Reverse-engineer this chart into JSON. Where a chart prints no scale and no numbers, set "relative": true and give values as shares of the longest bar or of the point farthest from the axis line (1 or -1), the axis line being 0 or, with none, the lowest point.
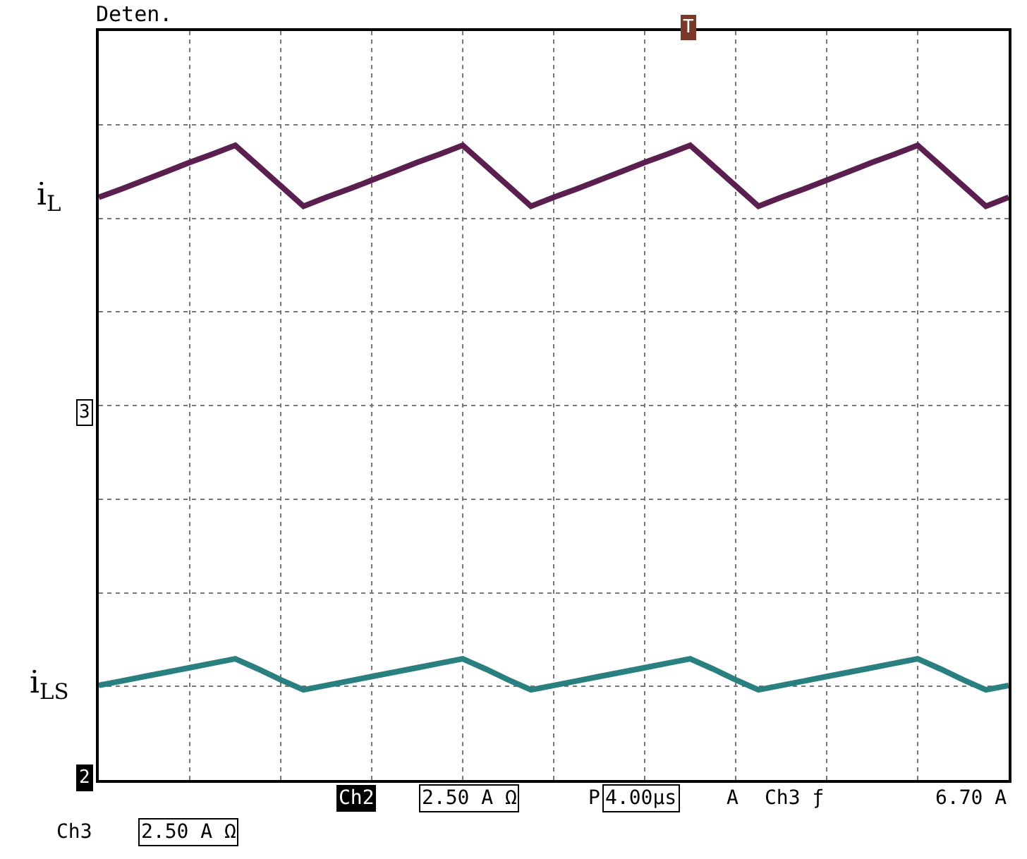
{
  "chart_data": {
    "type": "line",
    "relative": true,
    "categories": [
      null,
      null,
      null,
      null,
      null,
      null,
      null,
      null,
      null,
      null,
      null,
      null,
      null,
      null,
      null,
      null,
      null,
      null,
      null,
      null,
      null,
      null,
      null,
      null,
      null,
      null,
      null,
      null,
      null,
      null,
      null,
      null,
      null,
      null,
      null,
      null,
      null,
      null,
      null,
      null,
      null
    ],
    "series": [
      {
        "name": "i$_{L}$",
        "color": "#5a1f4f",
        "values": [
          0.918,
          0.931,
          0.945,
          0.959,
          0.973,
          0.986,
          1.0,
          0.968,
          0.936,
          0.904,
          0.918,
          0.931,
          0.945,
          0.959,
          0.973,
          0.986,
          1.0,
          0.968,
          0.936,
          0.904,
          0.918,
          0.931,
          0.945,
          0.959,
          0.973,
          0.986,
          1.0,
          0.968,
          0.936,
          0.904,
          0.918,
          0.931,
          0.945,
          0.959,
          0.973,
          0.986,
          1.0,
          0.968,
          0.936,
          0.904,
          0.918
        ]
      },
      {
        "name": "i$_{L}$$_{S}$",
        "color": "#2a8080",
        "values": [
          0.149,
          0.156,
          0.163,
          0.17,
          0.177,
          0.184,
          0.191,
          0.175,
          0.158,
          0.142,
          0.149,
          0.156,
          0.163,
          0.17,
          0.177,
          0.184,
          0.191,
          0.175,
          0.158,
          0.142,
          0.149,
          0.156,
          0.163,
          0.17,
          0.177,
          0.184,
          0.191,
          0.175,
          0.158,
          0.142,
          0.149,
          0.156,
          0.163,
          0.17,
          0.177,
          0.184,
          0.191,
          0.175,
          0.158,
          0.142,
          0.149
        ]
      }
    ],
    "annotations": [
      "Deten.",
      "3",
      "2",
      "T",
      "Ch2",
      "2.50 A Ω",
      "P",
      "4.00µs",
      "A",
      "Ch3 ƒ",
      "6.70 A",
      "Ch3",
      "2.50 A Ω"
    ],
    "grid": true,
    "legend": false,
    "marker": "none",
    "line_style": "solid"
  }
}
